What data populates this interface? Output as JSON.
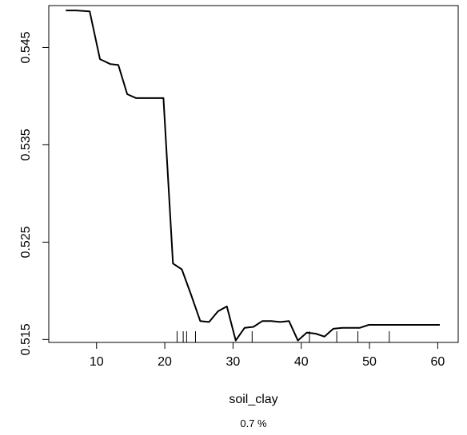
{
  "chart_data": {
    "type": "line",
    "title": "",
    "xlabel": "soil_clay",
    "ylabel": "",
    "subtitle": "0.7 %",
    "xlim": [
      3,
      63
    ],
    "ylim": [
      0.5147,
      0.5493
    ],
    "xticks": [
      10,
      20,
      30,
      40,
      50,
      60
    ],
    "yticks": [
      0.515,
      0.525,
      0.535,
      0.545
    ],
    "ytick_labels": [
      "0.515",
      "0.525",
      "0.535",
      "0.545"
    ],
    "grid": false,
    "series": [
      {
        "x": [
          5.5,
          7,
          9,
          10.5,
          12,
          13.2,
          14.5,
          15.8,
          17,
          18.5,
          19.8,
          21.2,
          22.5,
          23.8,
          25.2,
          26.5,
          27.8,
          29.1,
          30.4,
          31.7,
          33,
          34.3,
          35.6,
          36.9,
          38.2,
          39.5,
          40.8,
          42.1,
          43.4,
          44.7,
          46,
          47.3,
          48.6,
          49.9,
          51.2,
          52.5,
          53.8,
          55.1,
          56.4,
          57.7,
          59,
          60.3
        ],
        "y": [
          0.5488,
          0.5488,
          0.5487,
          0.5438,
          0.5433,
          0.5432,
          0.5402,
          0.5398,
          0.5398,
          0.5398,
          0.5398,
          0.5228,
          0.5222,
          0.5197,
          0.5169,
          0.5168,
          0.5179,
          0.5184,
          0.5149,
          0.5162,
          0.5163,
          0.5169,
          0.5169,
          0.5168,
          0.5169,
          0.5149,
          0.5157,
          0.5156,
          0.5153,
          0.5161,
          0.5162,
          0.5162,
          0.5162,
          0.5165,
          0.5165,
          0.5165,
          0.5165,
          0.5165,
          0.5165,
          0.5165,
          0.5165,
          0.5165
        ]
      }
    ],
    "rug": [
      21.8,
      22.7,
      23.2,
      24.5,
      32.8,
      41.2,
      45.2,
      48.3,
      52.9
    ]
  }
}
